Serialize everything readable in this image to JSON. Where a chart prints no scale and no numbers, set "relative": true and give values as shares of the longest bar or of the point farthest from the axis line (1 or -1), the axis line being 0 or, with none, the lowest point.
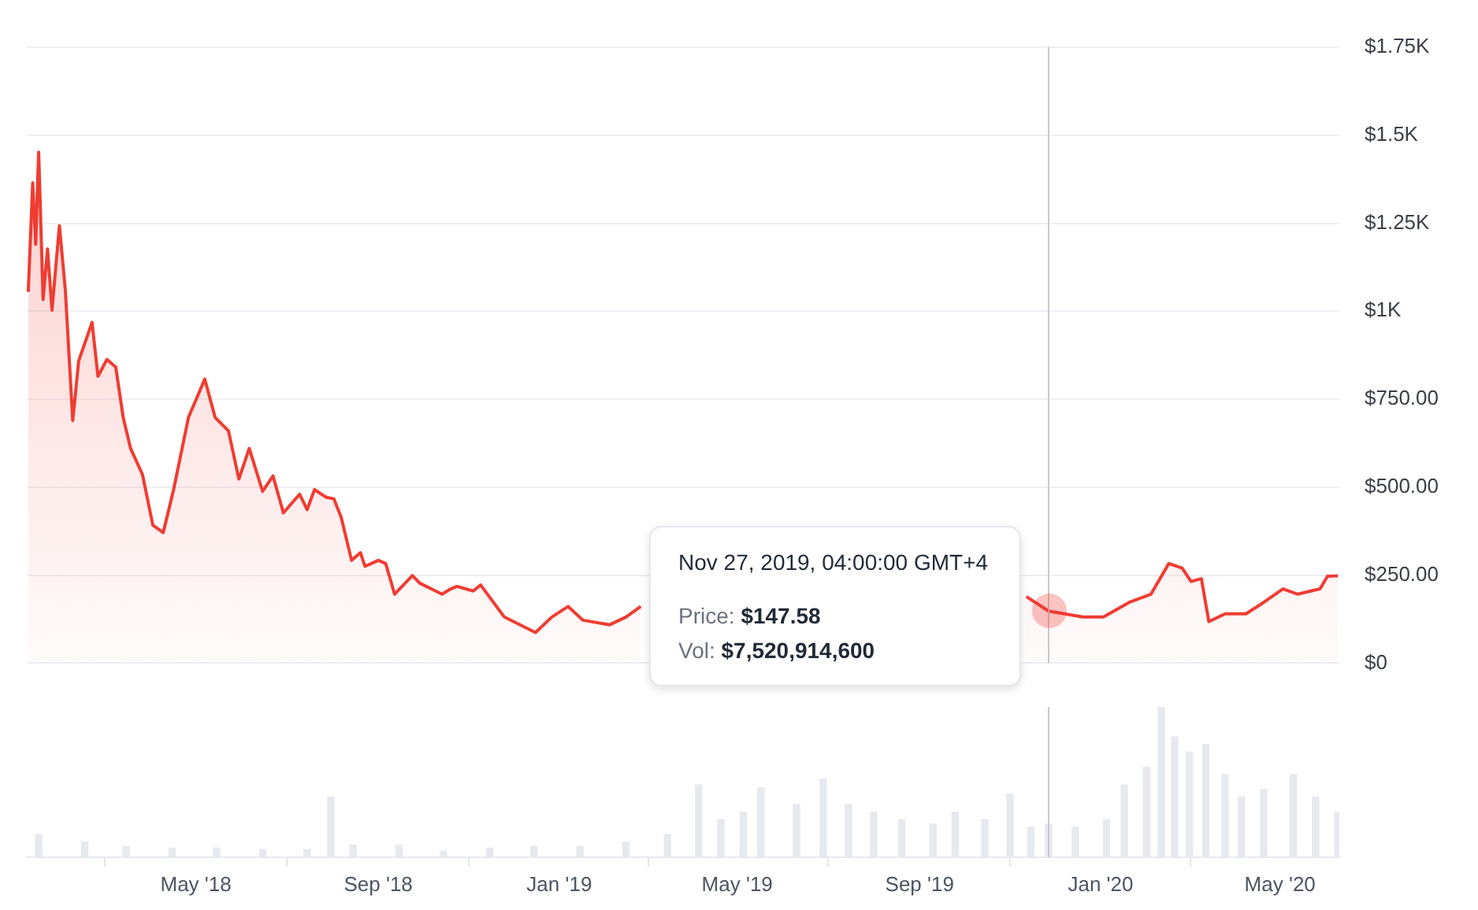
{
  "chart_data": [
    {
      "type": "area",
      "x": [
        "2018-01-08",
        "2018-01-11",
        "2018-01-13",
        "2018-01-15",
        "2018-01-18",
        "2018-01-21",
        "2018-01-24",
        "2018-01-29",
        "2018-02-02",
        "2018-02-07",
        "2018-02-11",
        "2018-02-20",
        "2018-02-24",
        "2018-03-02",
        "2018-03-08",
        "2018-03-13",
        "2018-03-18",
        "2018-03-26",
        "2018-04-02",
        "2018-04-09",
        "2018-04-16",
        "2018-04-26",
        "2018-05-07",
        "2018-05-14",
        "2018-05-23",
        "2018-05-30",
        "2018-06-06",
        "2018-06-15",
        "2018-06-22",
        "2018-06-29",
        "2018-07-10",
        "2018-07-15",
        "2018-07-20",
        "2018-07-28",
        "2018-08-02",
        "2018-08-07",
        "2018-08-14",
        "2018-08-20",
        "2018-08-23",
        "2018-09-01",
        "2018-09-06",
        "2018-09-12",
        "2018-09-24",
        "2018-09-29",
        "2018-10-14",
        "2018-10-19",
        "2018-10-24",
        "2018-11-04",
        "2018-11-09",
        "2018-11-25",
        "2018-12-16",
        "2018-12-27",
        "2019-01-07",
        "2019-01-17",
        "2019-02-04",
        "2019-02-15",
        "2019-02-25",
        "2019-06-01",
        "2019-11-12",
        "2019-11-27",
        "2019-12-20",
        "2020-01-03",
        "2020-01-21",
        "2020-02-04",
        "2020-02-16",
        "2020-02-25",
        "2020-03-02",
        "2020-03-09",
        "2020-03-14",
        "2020-03-25",
        "2020-04-08",
        "2020-04-18",
        "2020-05-03",
        "2020-05-13",
        "2020-05-28",
        "2020-06-02",
        "2020-06-09"
      ],
      "series": [
        {
          "color": "#f03c32",
          "values": [
            1055,
            1365,
            1190,
            1452,
            1033,
            1177,
            1003,
            1243,
            1059,
            689,
            859,
            968,
            815,
            863,
            841,
            698,
            610,
            536,
            392,
            371,
            493,
            698,
            807,
            698,
            660,
            523,
            610,
            488,
            532,
            427,
            480,
            436,
            493,
            471,
            467,
            414,
            292,
            314,
            275,
            292,
            283,
            196,
            249,
            227,
            196,
            209,
            218,
            205,
            222,
            131,
            87,
            131,
            161,
            122,
            109,
            131,
            161,
            null,
            189,
            148,
            131,
            131,
            174,
            196,
            283,
            270,
            232,
            240,
            118,
            140,
            140,
            167,
            211,
            196,
            211,
            247,
            248
          ]
        }
      ],
      "xlim": [
        "2018-01-07",
        "2020-06-10"
      ],
      "ylim": [
        0,
        1750
      ],
      "yticks": [
        {
          "value": 0,
          "label": "$0"
        },
        {
          "value": 250,
          "label": "$250.00"
        },
        {
          "value": 500,
          "label": "$500.00"
        },
        {
          "value": 750,
          "label": "$750.00"
        },
        {
          "value": 1000,
          "label": "$1K"
        },
        {
          "value": 1250,
          "label": "$1.25K"
        },
        {
          "value": 1500,
          "label": "$1.5K"
        },
        {
          "value": 1750,
          "label": "$1.75K"
        }
      ],
      "grid": "y",
      "tick_labels": "y",
      "ref_lines": [
        {
          "axis": "x",
          "value": "2019-11-27",
          "color": "#c8c8c8"
        }
      ],
      "annotations": [
        "Nov 27, 2019, 04:00:00 GMT+4",
        "Price: $147.58",
        "Vol: $7,520,914,600"
      ]
    },
    {
      "type": "bar",
      "relative": true,
      "x": [
        "2018-01-15",
        "2018-02-15",
        "2018-03-15",
        "2018-04-15",
        "2018-05-15",
        "2018-06-15",
        "2018-07-15",
        "2018-07-31",
        "2018-08-15",
        "2018-09-15",
        "2018-10-15",
        "2018-11-15",
        "2018-12-15",
        "2019-01-15",
        "2019-02-15",
        "2019-03-15",
        "2019-04-05",
        "2019-04-20",
        "2019-05-05",
        "2019-05-17",
        "2019-06-10",
        "2019-06-28",
        "2019-07-15",
        "2019-08-01",
        "2019-08-20",
        "2019-09-10",
        "2019-09-25",
        "2019-10-15",
        "2019-11-01",
        "2019-11-15",
        "2019-11-27",
        "2019-12-15",
        "2020-01-05",
        "2020-01-17",
        "2020-02-01",
        "2020-02-11",
        "2020-02-20",
        "2020-03-01",
        "2020-03-12",
        "2020-03-25",
        "2020-04-05",
        "2020-04-20",
        "2020-05-10",
        "2020-05-25",
        "2020-06-09"
      ],
      "series": [
        {
          "color": "#e6e9ee",
          "values": [
            0.15,
            0.1,
            0.07,
            0.06,
            0.06,
            0.05,
            0.05,
            0.4,
            0.08,
            0.08,
            0.04,
            0.06,
            0.07,
            0.07,
            0.1,
            0.15,
            0.48,
            0.25,
            0.3,
            0.46,
            0.35,
            0.52,
            0.35,
            0.3,
            0.25,
            0.22,
            0.3,
            0.25,
            0.42,
            0.2,
            0.22,
            0.2,
            0.25,
            0.48,
            0.6,
            1,
            0.8,
            0.7,
            0.75,
            0.55,
            0.4,
            0.45,
            0.55,
            0.4,
            0.3
          ]
        }
      ],
      "xlim": [
        "2018-01-07",
        "2020-06-10"
      ],
      "xticks": [
        {
          "value": "2018-05-01",
          "label": "May '18"
        },
        {
          "value": "2018-09-01",
          "label": "Sep '18"
        },
        {
          "value": "2019-01-01",
          "label": "Jan '19"
        },
        {
          "value": "2019-05-01",
          "label": "May '19"
        },
        {
          "value": "2019-09-01",
          "label": "Sep '19"
        },
        {
          "value": "2020-01-01",
          "label": "Jan '20"
        },
        {
          "value": "2020-05-01",
          "label": "May '20"
        }
      ],
      "ref_lines": [
        {
          "axis": "x",
          "value": "2019-11-27",
          "color": "#c8c8c8"
        }
      ]
    }
  ]
}
